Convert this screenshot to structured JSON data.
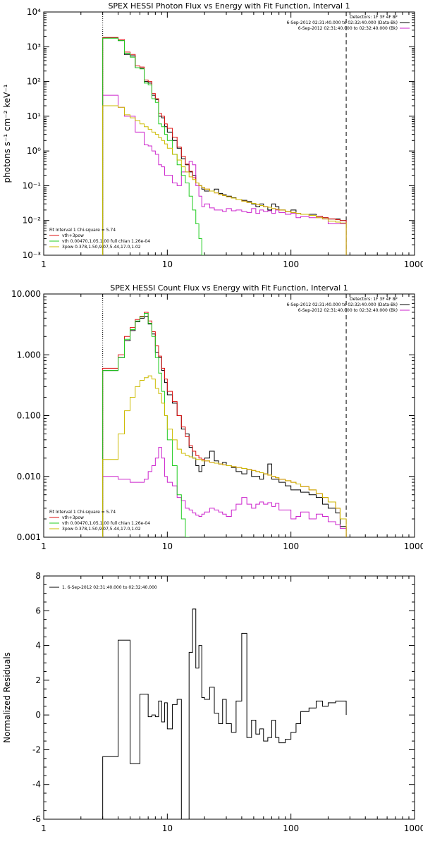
{
  "chart_data": [
    {
      "type": "line",
      "title": "SPEX HESSI Photon Flux vs Energy with Fit Function, Interval 1",
      "xlabel": "",
      "ylabel": "photons s⁻¹ cm⁻² keV⁻¹",
      "x_scale": "log",
      "y_scale": "log",
      "xlim": [
        1,
        1000
      ],
      "ylim": [
        0.001,
        10000
      ],
      "x_ticks": [
        1,
        10,
        100,
        1000
      ],
      "x_tick_labels": [
        "1",
        "10",
        "100",
        "1000"
      ],
      "y_ticks": [
        0.001,
        0.01,
        0.1,
        1,
        10,
        100,
        1000,
        10000
      ],
      "y_tick_labels": [
        "10⁻³",
        "10⁻²",
        "10⁻¹",
        "10⁰",
        "10¹",
        "10²",
        "10³",
        "10⁴"
      ],
      "vlines": [
        {
          "x": 3,
          "style": "dotted"
        },
        {
          "x": 280,
          "style": "dashed"
        }
      ],
      "legend_right": {
        "header": "Detectors: 1F 3F 4F 8F",
        "entries": [
          {
            "text": "6-Sep-2012 02:31:40.000 to 02:32:40.000 (Data-Bk)",
            "color": "#000000"
          },
          {
            "text": "6-Sep-2012 02:31:40.000 to 02:32:40.000 (Bk)",
            "color": "#cc22cc"
          }
        ]
      },
      "legend_left": {
        "header": "Fit Interval  1     Chi-square = 5.74",
        "entries": [
          {
            "text": "vth+3pow",
            "color": "#dd1111"
          },
          {
            "text": "vth 0.00470,1.05,1.00   full chian 1.26e-04",
            "color": "#22cc22"
          },
          {
            "text": "3pow 0.378,1.50,9.07,5.44,17.0,1.02",
            "color": "#ccbb00"
          }
        ]
      },
      "bin_edges": [
        3,
        3.5,
        4,
        4.5,
        5,
        5.5,
        6,
        6.5,
        7,
        7.5,
        8,
        8.5,
        9,
        9.5,
        10,
        11,
        12,
        13,
        14,
        15,
        16,
        17,
        18,
        19,
        20,
        22,
        24,
        26,
        28,
        30,
        33,
        36,
        40,
        44,
        48,
        52,
        56,
        60,
        65,
        70,
        75,
        80,
        90,
        100,
        110,
        120,
        140,
        160,
        180,
        200,
        230,
        250,
        280
      ],
      "series": [
        {
          "name": "Data-Bk",
          "color": "#000000",
          "values": [
            1800,
            1800,
            1500,
            600,
            550,
            250,
            240,
            100,
            90,
            40,
            30,
            10,
            9,
            5,
            3.5,
            2,
            1.2,
            0.6,
            0.4,
            0.25,
            0.2,
            0.12,
            0.1,
            0.08,
            0.07,
            0.07,
            0.08,
            0.06,
            0.055,
            0.05,
            0.045,
            0.04,
            0.038,
            0.035,
            0.03,
            0.025,
            0.03,
            0.025,
            0.02,
            0.03,
            0.025,
            0.02,
            0.018,
            0.02,
            0.016,
            0.015,
            0.015,
            0.013,
            0.012,
            0.011,
            0.011,
            0.01
          ]
        },
        {
          "name": "Bk",
          "color": "#cc22cc",
          "values": [
            40,
            40,
            18,
            10,
            10,
            3.5,
            3.5,
            1.5,
            1.4,
            1,
            0.8,
            0.4,
            0.35,
            0.2,
            0.2,
            0.12,
            0.1,
            0.25,
            0.25,
            0.5,
            0.4,
            0.1,
            0.05,
            0.025,
            0.03,
            0.023,
            0.02,
            0.02,
            0.018,
            0.022,
            0.019,
            0.02,
            0.018,
            0.017,
            0.022,
            0.016,
            0.02,
            0.018,
            0.019,
            0.016,
            0.02,
            0.017,
            0.015,
            0.016,
            0.012,
            0.013,
            0.012,
            0.012,
            0.011,
            0.008,
            0.008,
            0.008
          ]
        },
        {
          "name": "vth+3pow",
          "color": "#dd1111",
          "values": [
            1850,
            1850,
            1600,
            700,
            600,
            280,
            260,
            110,
            100,
            45,
            32,
            12,
            10,
            6,
            4.5,
            2.5,
            1.3,
            0.7,
            0.42,
            0.26,
            0.17,
            0.12,
            0.1,
            0.09,
            0.08,
            0.07,
            0.062,
            0.056,
            0.052,
            0.048,
            0.044,
            0.04,
            0.036,
            0.033,
            0.031,
            0.029,
            0.027,
            0.025,
            0.024,
            0.022,
            0.021,
            0.02,
            0.018,
            0.017,
            0.016,
            0.015,
            0.014,
            0.013,
            0.012,
            0.011,
            0.0105,
            0.01
          ]
        },
        {
          "name": "vth",
          "color": "#22cc22",
          "values": [
            1750,
            1750,
            1500,
            650,
            500,
            250,
            230,
            90,
            80,
            32,
            25,
            6,
            5,
            3,
            2,
            0.8,
            0.4,
            0.2,
            0.12,
            0.05,
            0.02,
            0.008,
            0.003,
            0.001
          ]
        },
        {
          "name": "3pow",
          "color": "#ccbb00",
          "values": [
            20,
            20,
            18,
            11,
            9,
            7.5,
            6,
            5,
            4.2,
            3.5,
            3,
            2.4,
            2,
            1.6,
            1.2,
            0.8,
            0.55,
            0.35,
            0.25,
            0.18,
            0.15,
            0.12,
            0.1,
            0.09,
            0.08,
            0.07,
            0.062,
            0.056,
            0.052,
            0.048,
            0.044,
            0.04,
            0.036,
            0.033,
            0.031,
            0.029,
            0.027,
            0.025,
            0.024,
            0.022,
            0.021,
            0.02,
            0.018,
            0.017,
            0.016,
            0.015,
            0.014,
            0.012,
            0.011,
            0.0095,
            0.009,
            0.0085
          ]
        }
      ]
    },
    {
      "type": "line",
      "title": "SPEX HESSI Count Flux vs Energy with Fit Function, Interval 1",
      "xlabel": "",
      "ylabel": "",
      "x_scale": "log",
      "y_scale": "log",
      "xlim": [
        1,
        1000
      ],
      "ylim": [
        0.001,
        10
      ],
      "x_ticks": [
        1,
        10,
        100,
        1000
      ],
      "x_tick_labels": [
        "1",
        "10",
        "100",
        "1000"
      ],
      "y_ticks": [
        0.001,
        0.01,
        0.1,
        1,
        10
      ],
      "y_tick_labels": [
        "0.001",
        "0.010",
        "0.100",
        "1.000",
        "10.000"
      ],
      "vlines": [
        {
          "x": 3,
          "style": "dotted"
        },
        {
          "x": 280,
          "style": "dashed"
        }
      ],
      "legend_right": {
        "header": "Detectors: 1F 3F 4F 8F",
        "entries": [
          {
            "text": "6-Sep-2012 02:31:40.000 to 02:32:40.000 (Data-Bk)",
            "color": "#000000"
          },
          {
            "text": "6-Sep-2012 02:31:40.000 to 02:32:40.000 (Bk)",
            "color": "#cc22cc"
          }
        ]
      },
      "legend_left": {
        "header": "Fit Interval  1     Chi-square = 5.74",
        "entries": [
          {
            "text": "vth+3pow",
            "color": "#dd1111"
          },
          {
            "text": "vth 0.00470,1.05,1.00   full chian 1.26e-04",
            "color": "#22cc22"
          },
          {
            "text": "3pow 0.378,1.50,9.07,5.44,17.0,1.02",
            "color": "#ccbb00"
          }
        ]
      },
      "bin_edges": [
        3,
        3.5,
        4,
        4.5,
        5,
        5.5,
        6,
        6.5,
        7,
        7.5,
        8,
        8.5,
        9,
        9.5,
        10,
        11,
        12,
        13,
        14,
        15,
        16,
        17,
        18,
        19,
        20,
        22,
        24,
        26,
        28,
        30,
        33,
        36,
        40,
        44,
        48,
        52,
        56,
        60,
        65,
        70,
        75,
        80,
        90,
        100,
        110,
        120,
        140,
        160,
        180,
        200,
        230,
        250,
        280
      ],
      "series": [
        {
          "name": "Data-Bk",
          "color": "#000000",
          "values": [
            0.55,
            0.55,
            0.9,
            1.7,
            2.5,
            3.5,
            4,
            4.3,
            3.2,
            2.2,
            1.1,
            0.9,
            0.55,
            0.35,
            0.22,
            0.16,
            0.1,
            0.06,
            0.05,
            0.03,
            0.02,
            0.015,
            0.012,
            0.015,
            0.02,
            0.026,
            0.018,
            0.016,
            0.017,
            0.015,
            0.014,
            0.012,
            0.011,
            0.013,
            0.01,
            0.01,
            0.009,
            0.011,
            0.016,
            0.009,
            0.009,
            0.008,
            0.007,
            0.006,
            0.006,
            0.0055,
            0.005,
            0.0045,
            0.0035,
            0.003,
            0.0025,
            0.0015
          ]
        },
        {
          "name": "Bk",
          "color": "#cc22cc",
          "values": [
            0.01,
            0.01,
            0.009,
            0.009,
            0.008,
            0.008,
            0.008,
            0.009,
            0.012,
            0.015,
            0.02,
            0.03,
            0.02,
            0.01,
            0.008,
            0.007,
            0.0045,
            0.004,
            0.003,
            0.0028,
            0.0025,
            0.0023,
            0.0022,
            0.0024,
            0.0026,
            0.003,
            0.0028,
            0.0026,
            0.0024,
            0.0022,
            0.0028,
            0.0035,
            0.0045,
            0.0035,
            0.003,
            0.0035,
            0.0038,
            0.0035,
            0.0037,
            0.0032,
            0.0036,
            0.0028,
            0.0028,
            0.002,
            0.0022,
            0.0026,
            0.002,
            0.0024,
            0.0022,
            0.0018,
            0.0016,
            0.0014
          ]
        },
        {
          "name": "vth+3pow",
          "color": "#dd1111",
          "values": [
            0.6,
            0.6,
            1,
            2,
            2.8,
            3.8,
            4.3,
            5,
            3.6,
            2.4,
            1.4,
            0.95,
            0.6,
            0.4,
            0.25,
            0.17,
            0.1,
            0.065,
            0.045,
            0.032,
            0.026,
            0.022,
            0.02,
            0.019,
            0.018,
            0.017,
            0.0165,
            0.016,
            0.0155,
            0.015,
            0.0145,
            0.014,
            0.0135,
            0.013,
            0.0125,
            0.012,
            0.0115,
            0.011,
            0.0105,
            0.01,
            0.0095,
            0.009,
            0.0085,
            0.008,
            0.0075,
            0.0068,
            0.006,
            0.0052,
            0.0045,
            0.0038,
            0.003,
            0.002
          ]
        },
        {
          "name": "vth",
          "color": "#22cc22",
          "values": [
            0.55,
            0.55,
            0.9,
            1.8,
            2.6,
            3.6,
            4.2,
            4.8,
            3.3,
            2,
            0.9,
            0.5,
            0.25,
            0.1,
            0.04,
            0.015,
            0.005,
            0.002,
            0.001
          ]
        },
        {
          "name": "3pow",
          "color": "#ccbb00",
          "values": [
            0.019,
            0.019,
            0.05,
            0.12,
            0.2,
            0.3,
            0.38,
            0.42,
            0.45,
            0.4,
            0.28,
            0.23,
            0.16,
            0.1,
            0.06,
            0.04,
            0.028,
            0.024,
            0.022,
            0.021,
            0.02,
            0.019,
            0.019,
            0.018,
            0.018,
            0.017,
            0.0165,
            0.016,
            0.0155,
            0.015,
            0.0145,
            0.014,
            0.0135,
            0.013,
            0.0125,
            0.012,
            0.0115,
            0.011,
            0.0105,
            0.01,
            0.0095,
            0.009,
            0.0085,
            0.008,
            0.0075,
            0.0068,
            0.006,
            0.0052,
            0.0045,
            0.0038,
            0.003,
            0.002
          ]
        }
      ]
    },
    {
      "type": "line",
      "title": "",
      "xlabel": "",
      "ylabel": "Normalized Residuals",
      "x_scale": "log",
      "y_scale": "linear",
      "xlim": [
        1,
        1000
      ],
      "ylim": [
        -6,
        8
      ],
      "x_ticks": [
        1,
        10,
        100,
        1000
      ],
      "x_tick_labels": [
        "1",
        "10",
        "100",
        "1000"
      ],
      "y_ticks": [
        -6,
        -4,
        -2,
        0,
        2,
        4,
        6,
        8
      ],
      "y_tick_labels": [
        "-6",
        "-4",
        "-2",
        "0",
        "2",
        "4",
        "6",
        "8"
      ],
      "legend_left": {
        "header": "",
        "entries": [
          {
            "text": "1.  6-Sep-2012 02:31:40.000 to 02:32:40.000",
            "color": "#000000"
          }
        ]
      },
      "bin_edges": [
        3,
        3.5,
        4,
        4.5,
        5,
        5.5,
        6,
        6.5,
        7,
        7.5,
        8,
        8.5,
        9,
        9.5,
        10,
        11,
        12,
        13,
        14,
        15,
        16,
        17,
        18,
        19,
        20,
        22,
        24,
        26,
        28,
        30,
        33,
        36,
        40,
        44,
        48,
        52,
        56,
        60,
        65,
        70,
        75,
        80,
        90,
        100,
        110,
        120,
        140,
        160,
        180,
        200,
        230,
        250,
        280
      ],
      "series": [
        {
          "name": "1.  6-Sep-2012 02:31:40.000 to 02:32:40.000",
          "color": "#000000",
          "values": [
            -2.4,
            -2.4,
            4.3,
            4.3,
            -2.8,
            -2.8,
            1.2,
            1.2,
            -0.1,
            0,
            -0.1,
            0.8,
            -0.4,
            0.7,
            -0.8,
            0.6,
            0.9,
            -6,
            -6,
            3.6,
            6.1,
            2.7,
            4.0,
            1.0,
            0.9,
            1.6,
            0.1,
            -0.5,
            0.9,
            -0.5,
            -1.0,
            0.8,
            4.7,
            -1.3,
            -0.3,
            -1.1,
            -0.8,
            -1.5,
            -1.3,
            -0.3,
            -1.3,
            -1.6,
            -1.4,
            -1.0,
            -0.5,
            0.2,
            0.4,
            0.8,
            0.5,
            0.7,
            0.8,
            0.8
          ]
        }
      ]
    }
  ]
}
